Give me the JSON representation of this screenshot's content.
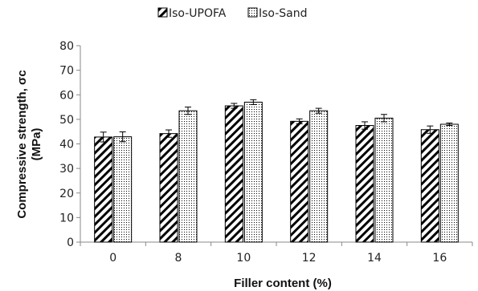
{
  "chart_data": {
    "type": "bar",
    "categories": [
      "0",
      "8",
      "10",
      "12",
      "14",
      "16"
    ],
    "series": [
      {
        "name": "Iso-UPOFA",
        "pattern": "diagonal-hatch",
        "values": [
          42.8,
          44.2,
          55.5,
          49.2,
          47.5,
          45.8
        ],
        "error": [
          2.0,
          1.5,
          1.0,
          1.0,
          1.5,
          1.5
        ]
      },
      {
        "name": "Iso-Sand",
        "pattern": "dotted",
        "values": [
          42.9,
          53.5,
          57.0,
          53.5,
          50.5,
          48.0
        ],
        "error": [
          2.0,
          1.5,
          1.0,
          1.0,
          1.5,
          0.5
        ]
      }
    ],
    "xlabel": "Filler content (%)",
    "ylabel_line1": "Compressive strength, σc",
    "ylabel_line2": "(MPa)",
    "ylim": [
      0,
      80
    ],
    "yticks": [
      "0",
      "10",
      "20",
      "30",
      "40",
      "50",
      "60",
      "70",
      "80"
    ],
    "grid": false,
    "legend_position": "top-center"
  },
  "colors": {
    "bar_stroke": "#000000",
    "axis": "#888888",
    "text": "#222222"
  }
}
